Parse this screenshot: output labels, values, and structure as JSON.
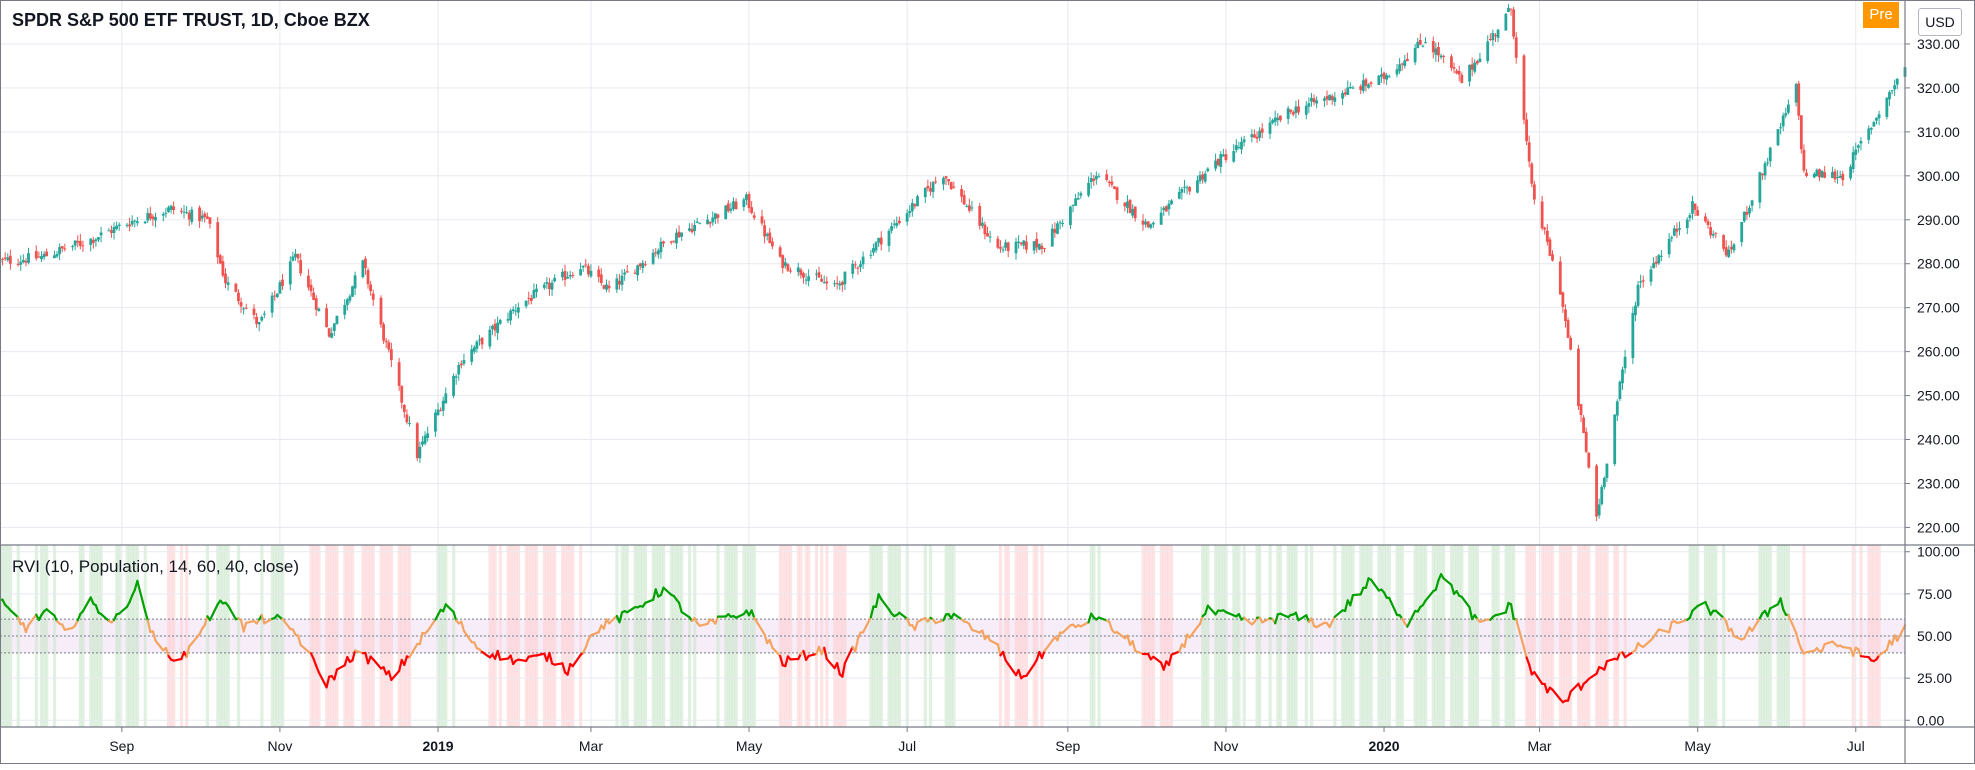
{
  "header": {
    "title": "SPDR S&P 500 ETF TRUST, 1D, Cboe BZX"
  },
  "badges": {
    "pre": "Pre",
    "currency": "USD"
  },
  "indicator": {
    "title": "RVI (10, Population, 14, 60, 40, close)"
  },
  "colors": {
    "up": "#26a69a",
    "down": "#ef5350",
    "rvi_high": "#00a000",
    "rvi_mid": "#f4a460",
    "rvi_low": "#ff0000",
    "bg_high": "#c8e6c9",
    "bg_low": "#ffcdd2",
    "band": "#f3e5f5"
  },
  "chart_data": [
    {
      "type": "candlestick",
      "title": "SPDR S&P 500 ETF TRUST, 1D, Cboe BZX",
      "x_ticks": [
        "Sep",
        "Nov",
        "2019",
        "Mar",
        "May",
        "Jul",
        "Sep",
        "Nov",
        "2020",
        "Mar",
        "May",
        "Jul"
      ],
      "x_ticks_bold": [
        "2019",
        "2020"
      ],
      "y_ticks": [
        "220.00",
        "230.00",
        "240.00",
        "250.00",
        "260.00",
        "270.00",
        "280.00",
        "290.00",
        "300.00",
        "310.00",
        "320.00",
        "330.00"
      ],
      "ylim": [
        216,
        340
      ],
      "x_range": [
        "2018-07-16",
        "2020-07-20"
      ],
      "close_path": [
        [
          "2018-07-16",
          280.5
        ],
        [
          "2018-08-01",
          281.5
        ],
        [
          "2018-08-20",
          285.5
        ],
        [
          "2018-09-04",
          289.5
        ],
        [
          "2018-09-20",
          292.5
        ],
        [
          "2018-10-04",
          290.0
        ],
        [
          "2018-10-11",
          276.0
        ],
        [
          "2018-10-24",
          266.0
        ],
        [
          "2018-11-07",
          281.5
        ],
        [
          "2018-11-20",
          264.0
        ],
        [
          "2018-12-03",
          280.0
        ],
        [
          "2018-12-24",
          236.5
        ],
        [
          "2019-01-10",
          258.0
        ],
        [
          "2019-02-01",
          270.5
        ],
        [
          "2019-02-25",
          279.5
        ],
        [
          "2019-03-08",
          274.0
        ],
        [
          "2019-04-01",
          286.0
        ],
        [
          "2019-04-30",
          294.5
        ],
        [
          "2019-05-13",
          280.5
        ],
        [
          "2019-06-03",
          274.5
        ],
        [
          "2019-07-15",
          300.5
        ],
        [
          "2019-08-05",
          283.5
        ],
        [
          "2019-08-23",
          284.5
        ],
        [
          "2019-09-12",
          300.5
        ],
        [
          "2019-10-02",
          288.5
        ],
        [
          "2019-10-28",
          303.0
        ],
        [
          "2019-11-27",
          315.0
        ],
        [
          "2019-12-31",
          322.0
        ],
        [
          "2020-01-17",
          331.0
        ],
        [
          "2020-01-31",
          321.5
        ],
        [
          "2020-02-19",
          338.0
        ],
        [
          "2020-02-27",
          297.0
        ],
        [
          "2020-03-09",
          274.0
        ],
        [
          "2020-03-23",
          222.5
        ],
        [
          "2020-04-08",
          275.0
        ],
        [
          "2020-04-29",
          293.0
        ],
        [
          "2020-05-13",
          282.0
        ],
        [
          "2020-06-08",
          320.0
        ],
        [
          "2020-06-11",
          300.5
        ],
        [
          "2020-06-26",
          300.0
        ],
        [
          "2020-07-20",
          325.0
        ]
      ]
    },
    {
      "type": "line",
      "title": "RVI (10, Population, 14, 60, 40, close)",
      "y_ticks": [
        "0.00",
        "25.00",
        "50.00",
        "75.00",
        "100.00"
      ],
      "ylim": [
        -4,
        104
      ],
      "bands": {
        "upper": 60,
        "mid": 50,
        "lower": 40
      },
      "series": [
        {
          "values": [
            [
              "2018-07-16",
              70
            ],
            [
              "2018-07-26",
              55
            ],
            [
              "2018-08-03",
              65
            ],
            [
              "2018-08-10",
              52
            ],
            [
              "2018-08-20",
              70
            ],
            [
              "2018-08-29",
              58
            ],
            [
              "2018-09-07",
              80
            ],
            [
              "2018-09-14",
              45
            ],
            [
              "2018-09-24",
              35
            ],
            [
              "2018-10-03",
              58
            ],
            [
              "2018-10-11",
              72
            ],
            [
              "2018-10-18",
              55
            ],
            [
              "2018-10-29",
              62
            ],
            [
              "2018-11-07",
              52
            ],
            [
              "2018-11-19",
              22
            ],
            [
              "2018-11-30",
              40
            ],
            [
              "2018-12-06",
              36
            ],
            [
              "2018-12-14",
              25
            ],
            [
              "2018-12-24",
              45
            ],
            [
              "2019-01-04",
              68
            ],
            [
              "2019-01-17",
              42
            ],
            [
              "2019-02-01",
              35
            ],
            [
              "2019-02-12",
              38
            ],
            [
              "2019-02-20",
              30
            ],
            [
              "2019-03-04",
              55
            ],
            [
              "2019-03-14",
              62
            ],
            [
              "2019-03-29",
              78
            ],
            [
              "2019-04-12",
              55
            ],
            [
              "2019-05-01",
              65
            ],
            [
              "2019-05-14",
              34
            ],
            [
              "2019-05-29",
              42
            ],
            [
              "2019-06-06",
              28
            ],
            [
              "2019-06-20",
              72
            ],
            [
              "2019-07-03",
              55
            ],
            [
              "2019-07-17",
              63
            ],
            [
              "2019-08-02",
              48
            ],
            [
              "2019-08-14",
              25
            ],
            [
              "2019-08-28",
              50
            ],
            [
              "2019-09-12",
              62
            ],
            [
              "2019-09-26",
              45
            ],
            [
              "2019-10-08",
              30
            ],
            [
              "2019-10-25",
              65
            ],
            [
              "2019-11-11",
              58
            ],
            [
              "2019-11-26",
              62
            ],
            [
              "2019-12-10",
              56
            ],
            [
              "2019-12-27",
              83
            ],
            [
              "2020-01-10",
              58
            ],
            [
              "2020-01-24",
              86
            ],
            [
              "2020-02-07",
              56
            ],
            [
              "2020-02-19",
              68
            ],
            [
              "2020-02-27",
              28
            ],
            [
              "2020-03-10",
              10
            ],
            [
              "2020-03-23",
              30
            ],
            [
              "2020-04-07",
              42
            ],
            [
              "2020-04-20",
              55
            ],
            [
              "2020-05-04",
              68
            ],
            [
              "2020-05-18",
              48
            ],
            [
              "2020-06-02",
              72
            ],
            [
              "2020-06-11",
              40
            ],
            [
              "2020-06-25",
              45
            ],
            [
              "2020-07-08",
              35
            ],
            [
              "2020-07-20",
              55
            ]
          ]
        }
      ]
    }
  ]
}
